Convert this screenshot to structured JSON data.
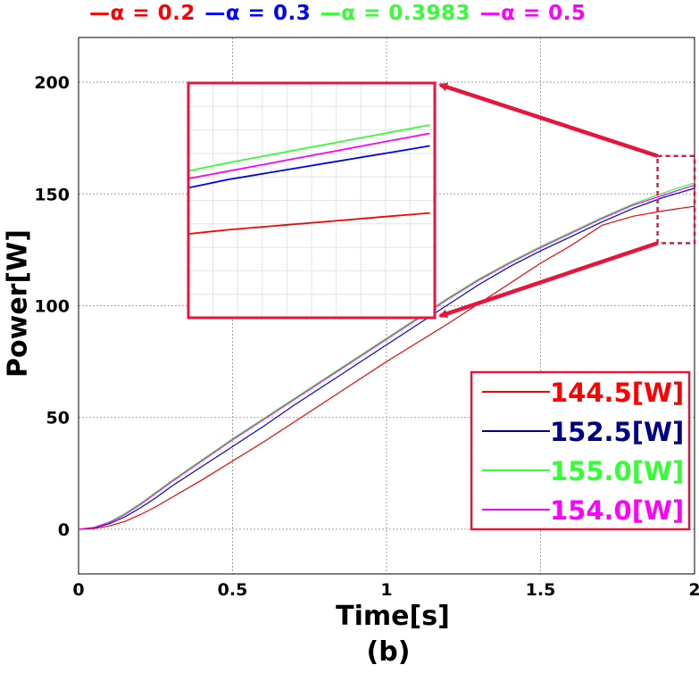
{
  "chart_data": {
    "type": "line",
    "title": "",
    "xlabel": "Time[s]",
    "ylabel": "Power[W]",
    "caption": "(b)",
    "xlim": [
      0,
      2
    ],
    "ylim": [
      -20,
      220
    ],
    "x_ticks": [
      0,
      0.5,
      1,
      1.5,
      2
    ],
    "x_tick_labels": [
      "0",
      "0.5",
      "1",
      "1.5",
      "2"
    ],
    "y_ticks": [
      0,
      50,
      100,
      150,
      200
    ],
    "y_tick_labels": [
      "0",
      "50",
      "100",
      "150",
      "200"
    ],
    "grid": true,
    "legend_top_placement": "top",
    "series": [
      {
        "name": "α = 0.2",
        "color": "#ff0000",
        "final_value_label": "144.5[W]",
        "final_value_color": "#ff0000",
        "x": [
          0,
          0.05,
          0.1,
          0.15,
          0.2,
          0.25,
          0.3,
          0.4,
          0.5,
          0.6,
          0.7,
          0.8,
          0.9,
          1.0,
          1.1,
          1.2,
          1.3,
          1.4,
          1.5,
          1.6,
          1.7,
          1.8,
          1.9,
          2.0
        ],
        "y": [
          0,
          0.3,
          1.5,
          3.5,
          6.5,
          10,
          14,
          22,
          30.5,
          39,
          48,
          57,
          66,
          75,
          83.5,
          92,
          101,
          110,
          119,
          127,
          136,
          140,
          142.5,
          144.5
        ]
      },
      {
        "name": "α = 0.3",
        "color": "#0000ff",
        "final_value_label": "152.5[W]",
        "final_value_color": "#00008b",
        "x": [
          0,
          0.05,
          0.1,
          0.15,
          0.2,
          0.25,
          0.3,
          0.4,
          0.5,
          0.6,
          0.7,
          0.8,
          0.9,
          1.0,
          1.1,
          1.2,
          1.3,
          1.4,
          1.5,
          1.6,
          1.7,
          1.8,
          1.9,
          2.0
        ],
        "y": [
          0,
          0.6,
          2.5,
          5.5,
          9.5,
          14,
          19,
          28,
          37,
          46,
          55.5,
          64.5,
          73.5,
          82.5,
          91.5,
          100.5,
          109.5,
          117.5,
          124.5,
          131,
          137.5,
          143.5,
          148.5,
          152.5
        ]
      },
      {
        "name": "α = 0.3983",
        "color": "#33ff33",
        "final_value_label": "155.0[W]",
        "final_value_color": "#33ff33",
        "x": [
          0,
          0.05,
          0.1,
          0.15,
          0.2,
          0.25,
          0.3,
          0.4,
          0.5,
          0.6,
          0.7,
          0.8,
          0.9,
          1.0,
          1.1,
          1.2,
          1.3,
          1.4,
          1.5,
          1.6,
          1.7,
          1.8,
          1.9,
          2.0
        ],
        "y": [
          0,
          0.9,
          3.2,
          7,
          11.5,
          16.5,
          21.5,
          31,
          40.5,
          49.5,
          58.5,
          67.5,
          76.5,
          85.5,
          94.5,
          103.5,
          112,
          119.5,
          126.5,
          133,
          139.5,
          145.5,
          150.5,
          155
        ]
      },
      {
        "name": "α = 0.5",
        "color": "#ff00ff",
        "final_value_label": "154.0[W]",
        "final_value_color": "#ff00ff",
        "x": [
          0,
          0.05,
          0.1,
          0.15,
          0.2,
          0.25,
          0.3,
          0.4,
          0.5,
          0.6,
          0.7,
          0.8,
          0.9,
          1.0,
          1.1,
          1.2,
          1.3,
          1.4,
          1.5,
          1.6,
          1.7,
          1.8,
          1.9,
          2.0
        ],
        "y": [
          0,
          0.8,
          3.0,
          6.5,
          11,
          16,
          21,
          30.5,
          40,
          49,
          58,
          67,
          76,
          85,
          94,
          103,
          111.5,
          119,
          126,
          132.5,
          139,
          145,
          149.5,
          154
        ]
      }
    ],
    "zoom_region": {
      "xlim": [
        1.88,
        2.0
      ],
      "ylim": [
        128,
        167
      ]
    },
    "inset_ylim": [
      132,
      160
    ]
  }
}
